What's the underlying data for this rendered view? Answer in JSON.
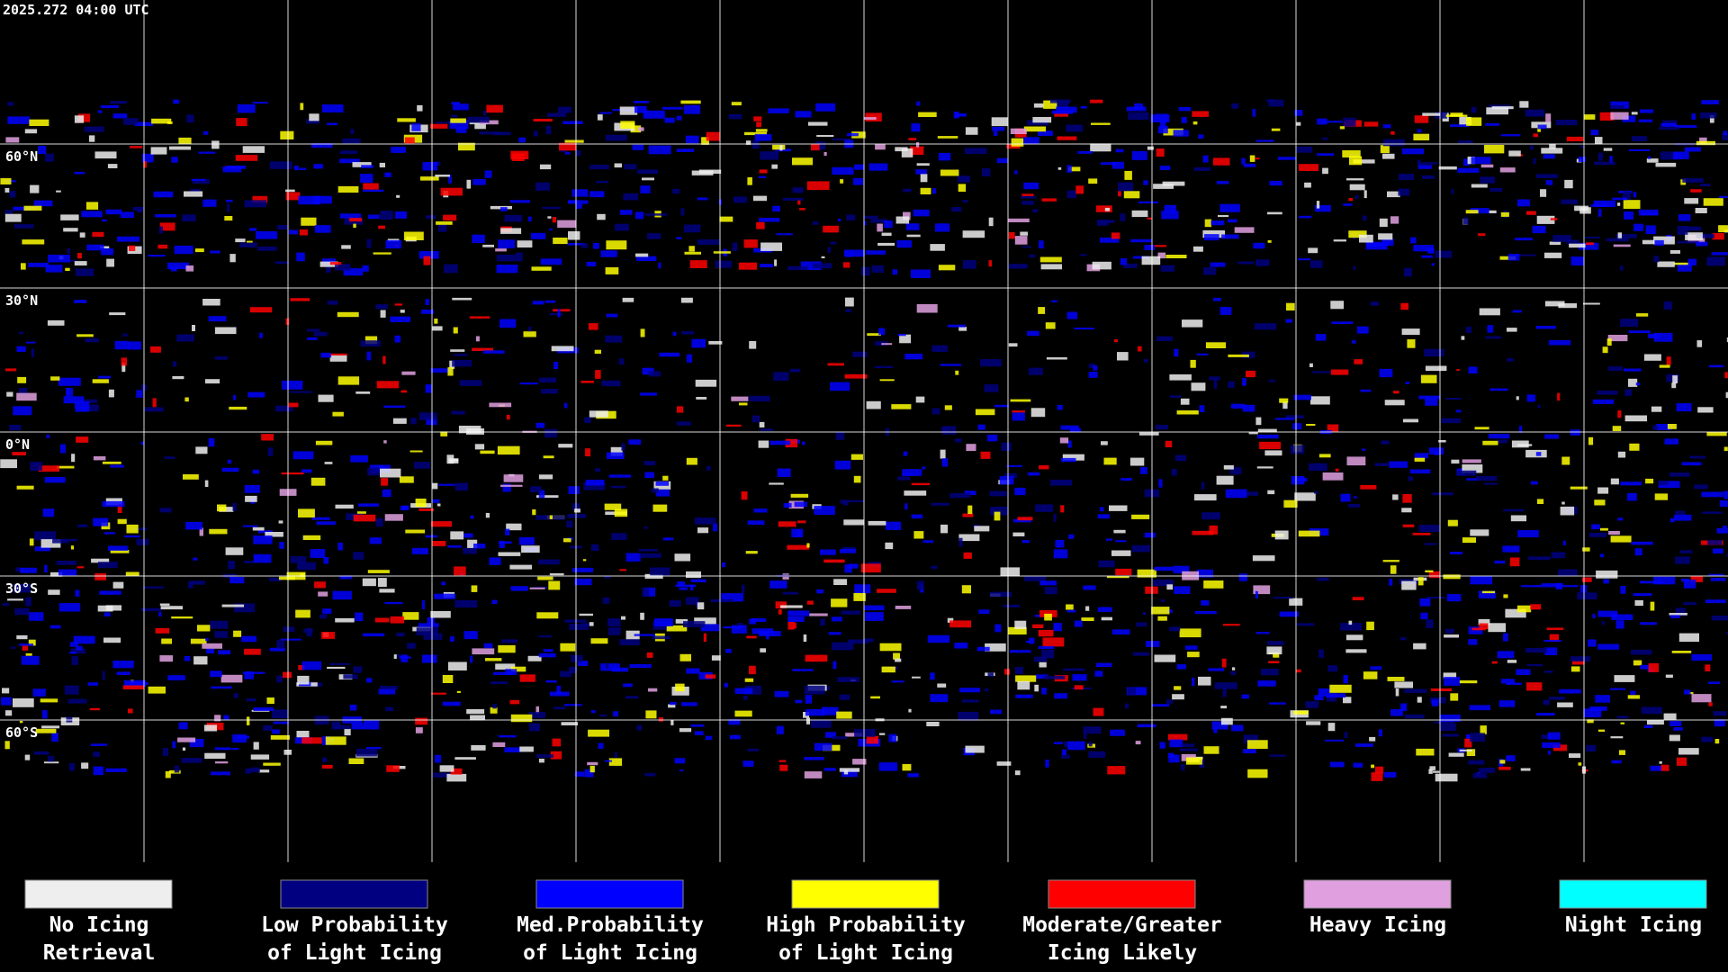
{
  "timestamp": "2025.272 04:00 UTC",
  "latitude_labels": [
    "60°N",
    "30°N",
    "0°N",
    "30°S",
    "60°S"
  ],
  "legend": [
    {
      "lines": [
        "No Icing",
        "Retrieval"
      ],
      "color": "#eeeeee"
    },
    {
      "lines": [
        "Low Probability",
        "of Light Icing"
      ],
      "color": "#000080"
    },
    {
      "lines": [
        "Med.Probability",
        "of Light Icing"
      ],
      "color": "#0000ff"
    },
    {
      "lines": [
        "High Probability",
        "of Light Icing"
      ],
      "color": "#ffff00"
    },
    {
      "lines": [
        "Moderate/Greater",
        "Icing Likely"
      ],
      "color": "#ff0000"
    },
    {
      "lines": [
        "Heavy Icing"
      ],
      "color": "#e0a0e0"
    },
    {
      "lines": [
        "Night Icing"
      ],
      "color": "#00ffff"
    }
  ]
}
